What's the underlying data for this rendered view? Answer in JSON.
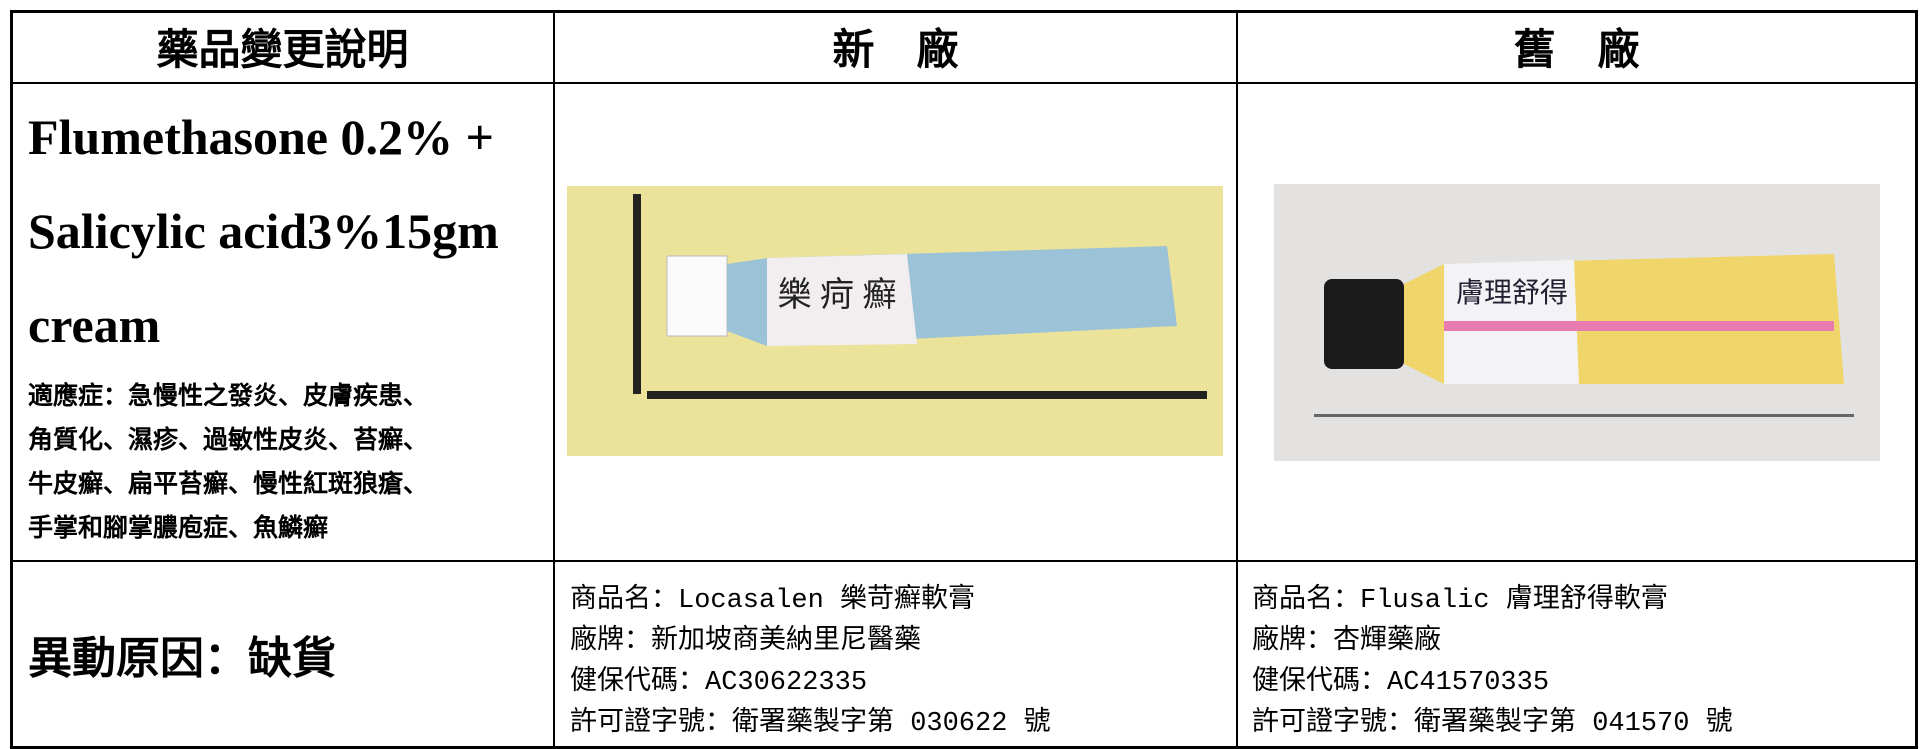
{
  "header": [
    "藥品變更說明",
    "新　廠",
    "舊　廠"
  ],
  "drug": {
    "name": [
      "Flumethasone 0.2% +",
      "Salicylic acid3%15gm",
      "cream"
    ],
    "indications": [
      "適應症：急慢性之發炎、皮膚疾患、",
      "角質化、濕疹、過敏性皮炎、苔癬、",
      "牛皮癬、扁平苔癬、慢性紅斑狼瘡、",
      "手掌和腳掌膿庖症、魚鱗癬"
    ]
  },
  "reason": "異動原因：缺貨",
  "new_product": {
    "photo_label": "樂 疴 癬",
    "info": [
      "商品名：Locasalen 樂苛癬軟膏",
      "廠牌：新加坡商美納里尼醫藥",
      "健保代碼：AC30622335",
      "許可證字號：衛署藥製字第 030622 號"
    ]
  },
  "old_product": {
    "photo_label": "膚理舒得",
    "info": [
      "商品名：Flusalic 膚理舒得軟膏",
      "廠牌：杏輝藥廠",
      "健保代碼：AC41570335",
      "許可證字號：衛署藥製字第 041570 號"
    ]
  }
}
